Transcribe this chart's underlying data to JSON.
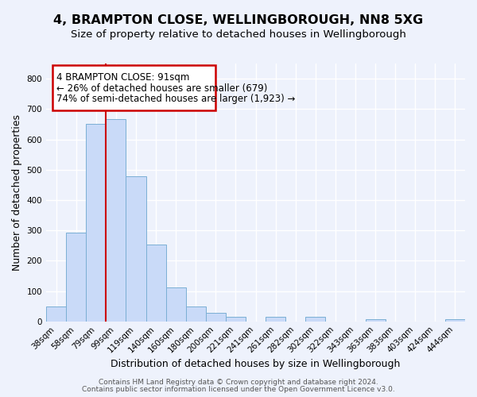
{
  "title": "4, BRAMPTON CLOSE, WELLINGBOROUGH, NN8 5XG",
  "subtitle": "Size of property relative to detached houses in Wellingborough",
  "xlabel": "Distribution of detached houses by size in Wellingborough",
  "ylabel": "Number of detached properties",
  "bar_labels": [
    "38sqm",
    "58sqm",
    "79sqm",
    "99sqm",
    "119sqm",
    "140sqm",
    "160sqm",
    "180sqm",
    "200sqm",
    "221sqm",
    "241sqm",
    "261sqm",
    "282sqm",
    "302sqm",
    "322sqm",
    "343sqm",
    "363sqm",
    "383sqm",
    "403sqm",
    "424sqm",
    "444sqm"
  ],
  "bar_heights": [
    48,
    293,
    651,
    666,
    477,
    253,
    113,
    50,
    28,
    14,
    0,
    14,
    0,
    14,
    0,
    0,
    7,
    0,
    0,
    0,
    7
  ],
  "bar_color": "#c9daf8",
  "bar_edge_color": "#7bafd4",
  "vline_color": "#cc0000",
  "annotation_box": {
    "text_line1": "4 BRAMPTON CLOSE: 91sqm",
    "text_line2": "← 26% of detached houses are smaller (679)",
    "text_line3": "74% of semi-detached houses are larger (1,923) →",
    "box_color": "#cc0000",
    "text_color": "#000000"
  },
  "footer_line1": "Contains HM Land Registry data © Crown copyright and database right 2024.",
  "footer_line2": "Contains public sector information licensed under the Open Government Licence v3.0.",
  "ylim": [
    0,
    850
  ],
  "yticks": [
    0,
    100,
    200,
    300,
    400,
    500,
    600,
    700,
    800
  ],
  "background_color": "#eef2fc",
  "grid_color": "#ffffff",
  "title_fontsize": 11.5,
  "subtitle_fontsize": 9.5,
  "axis_label_fontsize": 9,
  "tick_fontsize": 7.5,
  "footer_fontsize": 6.5,
  "annot_fontsize": 8.5
}
